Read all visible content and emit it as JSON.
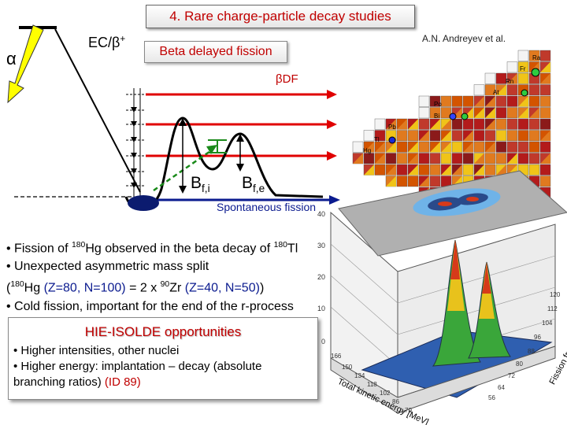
{
  "title": "4. Rare charge-particle decay studies",
  "author": "A.N. Andreyev et al.",
  "diagram": {
    "alpha_label": "α",
    "ec_beta_label": "EC/β",
    "ec_beta_sup": "+",
    "bdf_box": "Beta delayed fission",
    "bdf_label": "βDF",
    "bfi_main": "B",
    "bfi_sub": "f,i",
    "bfe_main": "B",
    "bfe_sub": "f,e",
    "sf_label": "Spontaneous  fission"
  },
  "bullets": {
    "b1_pre": "• Fission of ",
    "b1_mass1": "180",
    "b1_mid": "Hg observed in the beta decay of ",
    "b1_mass2": "180",
    "b1_end": "Tl",
    "b2": "• Unexpected asymmetric mass split",
    "b3_open": "(",
    "b3_mass1": "180",
    "b3_el1": "Hg",
    "b3_zn1": " (Z=80, N=100)",
    "b3_mid": " = 2 x ",
    "b3_mass2": "90",
    "b3_el2": "Zr",
    "b3_zn2": " (Z=40, N=50)",
    "b3_close": ")",
    "b4": "• Cold fission, important for the end of the r-process"
  },
  "hie": {
    "title": "HIE-ISOLDE opportunities",
    "line1": "• Higher intensities, other nuclei",
    "line2": "• Higher energy: implantation – decay (absolute",
    "line3_pre": "branching ratios) ",
    "line3_id": "(ID 89)"
  },
  "chart_labels": {
    "nuclide_labels": [
      "Ra",
      "Fr",
      "Rn",
      "At",
      "Po",
      "Bi",
      "Pb",
      "Tl",
      "Hg"
    ],
    "z_ticks": [
      "40",
      "30",
      "20",
      "10",
      "0"
    ],
    "mass_ticks": [
      "120",
      "112",
      "104",
      "96",
      "88",
      "80",
      "72",
      "64",
      "56"
    ],
    "energy_ticks": [
      "166",
      "150",
      "134",
      "118",
      "102",
      "86",
      "70"
    ],
    "mass_axis": "Fission fragment mass",
    "energy_axis": "Total kinetic energy [MeV]"
  }
}
